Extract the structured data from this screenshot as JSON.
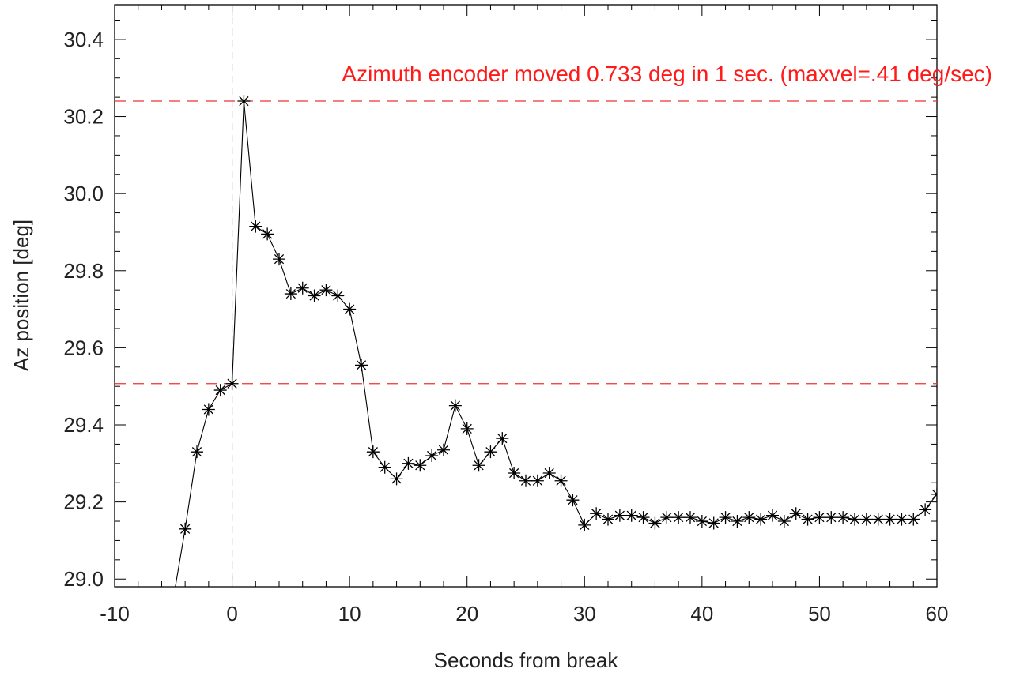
{
  "chart_data": {
    "type": "line",
    "title": "",
    "xlabel": "Seconds from break",
    "ylabel": "Az position [deg]",
    "xlim": [
      -10,
      60
    ],
    "ylim": [
      28.98,
      30.49
    ],
    "x_ticks": [
      -10,
      0,
      10,
      20,
      30,
      40,
      50,
      60
    ],
    "x_tick_labels": [
      "-10",
      "0",
      "10",
      "20",
      "30",
      "40",
      "50",
      "60"
    ],
    "y_ticks": [
      29.0,
      29.2,
      29.4,
      29.6,
      29.8,
      30.0,
      30.2,
      30.4
    ],
    "y_tick_labels": [
      "29.0",
      "29.2",
      "29.4",
      "29.6",
      "29.8",
      "30.0",
      "30.2",
      "30.4"
    ],
    "grid": false,
    "annotation": "Azimuth encoder moved 0.733 deg in 1 sec. (maxvel=.41 deg/sec)",
    "reference_lines": {
      "horizontal": [
        29.507,
        30.24
      ],
      "vertical": [
        0
      ],
      "horizontal_color": "#ee3333",
      "vertical_color": "#9933cc"
    },
    "series": [
      {
        "marker": "asterisk",
        "color": "#000000",
        "x": [
          -5,
          -4,
          -3,
          -2,
          -1,
          0,
          1,
          2,
          3,
          4,
          5,
          6,
          7,
          8,
          9,
          10,
          11,
          12,
          13,
          14,
          15,
          16,
          17,
          18,
          19,
          20,
          21,
          22,
          23,
          24,
          25,
          26,
          27,
          28,
          29,
          30,
          31,
          32,
          33,
          34,
          35,
          36,
          37,
          38,
          39,
          40,
          41,
          42,
          43,
          44,
          45,
          46,
          47,
          48,
          49,
          50,
          51,
          52,
          53,
          54,
          55,
          56,
          57,
          58,
          59,
          60
        ],
        "y": [
          28.95,
          29.13,
          29.33,
          29.44,
          29.49,
          29.507,
          30.24,
          29.915,
          29.895,
          29.83,
          29.74,
          29.755,
          29.735,
          29.75,
          29.735,
          29.7,
          29.555,
          29.33,
          29.29,
          29.26,
          29.3,
          29.295,
          29.32,
          29.335,
          29.45,
          29.39,
          29.295,
          29.33,
          29.365,
          29.275,
          29.255,
          29.255,
          29.275,
          29.255,
          29.205,
          29.14,
          29.17,
          29.155,
          29.165,
          29.165,
          29.16,
          29.145,
          29.16,
          29.16,
          29.16,
          29.15,
          29.145,
          29.16,
          29.15,
          29.16,
          29.155,
          29.165,
          29.15,
          29.17,
          29.155,
          29.16,
          29.16,
          29.16,
          29.155,
          29.155,
          29.155,
          29.155,
          29.155,
          29.155,
          29.18,
          29.22
        ]
      }
    ]
  }
}
